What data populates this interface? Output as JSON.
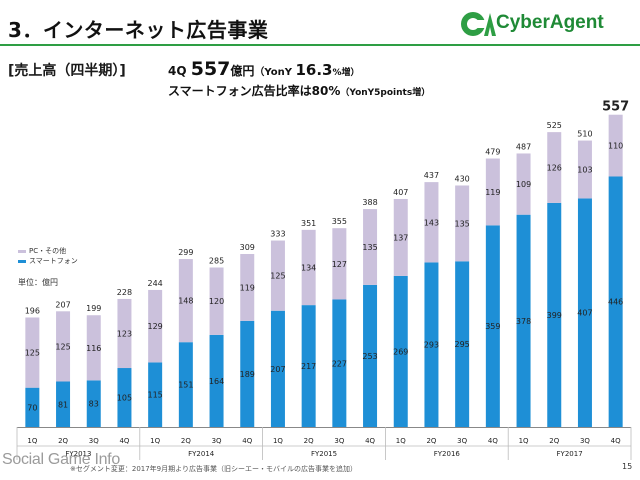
{
  "header": {
    "title": "3．インターネット広告事業",
    "logo_text": "CyberAgent"
  },
  "section_label": "[売上高（四半期）]",
  "headline": {
    "quarter": "4Q ",
    "value": "557",
    "unit": "億円",
    "yony_label": "（YonY ",
    "yony_value": "16.3",
    "yony_suffix": "%増）"
  },
  "subline": {
    "text": "スマートフォン広告比率は80%",
    "note": "（YonY5points増）"
  },
  "legend": {
    "items": [
      {
        "label": "PC・その他",
        "color": "#cbc1dc"
      },
      {
        "label": "スマートフォン",
        "color": "#1e8fd6"
      }
    ],
    "unit_label": "単位：億円"
  },
  "chart_data": {
    "type": "bar",
    "stacked": true,
    "categories": [
      "1Q",
      "2Q",
      "3Q",
      "4Q",
      "1Q",
      "2Q",
      "3Q",
      "4Q",
      "1Q",
      "2Q",
      "3Q",
      "4Q",
      "1Q",
      "2Q",
      "3Q",
      "4Q",
      "1Q",
      "2Q",
      "3Q",
      "4Q"
    ],
    "groups": [
      {
        "label": "FY2013",
        "start": 0,
        "end": 3
      },
      {
        "label": "FY2014",
        "start": 4,
        "end": 7
      },
      {
        "label": "FY2015",
        "start": 8,
        "end": 11
      },
      {
        "label": "FY2016",
        "start": 12,
        "end": 15
      },
      {
        "label": "FY2017",
        "start": 16,
        "end": 19
      }
    ],
    "series": [
      {
        "name": "スマートフォン",
        "color": "#1e8fd6",
        "values": [
          70,
          81,
          83,
          105,
          115,
          151,
          164,
          189,
          207,
          217,
          227,
          253,
          269,
          293,
          295,
          359,
          378,
          399,
          407,
          446
        ]
      },
      {
        "name": "PC・その他",
        "color": "#cbc1dc",
        "values": [
          125,
          125,
          116,
          123,
          129,
          148,
          120,
          119,
          125,
          134,
          127,
          135,
          137,
          143,
          135,
          119,
          109,
          126,
          103,
          110
        ]
      }
    ],
    "totals": [
      196,
      207,
      199,
      228,
      244,
      299,
      285,
      309,
      333,
      351,
      355,
      388,
      407,
      437,
      430,
      479,
      487,
      525,
      510,
      557
    ],
    "ylim": [
      0,
      600
    ],
    "grid": false
  },
  "footnote": "※セグメント変更：2017年9月期より広告事業（旧シーエー・モバイルの広告事業を追加）",
  "watermark": "Social Game Info",
  "page_number": "15"
}
